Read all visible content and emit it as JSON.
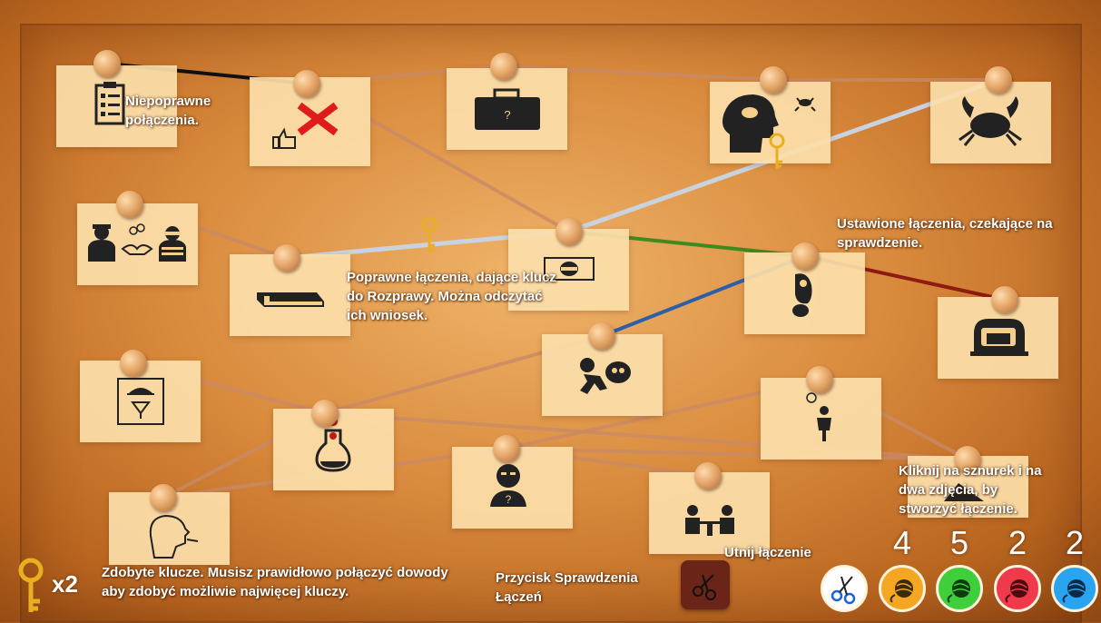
{
  "notes": {
    "wrong": "Niepoprawne połączenia.",
    "correct": "Poprawne łączenia, dające klucz do Rozprawy. Można odczytać ich wniosek.",
    "pending": "Ustawione łączenia, czekające na sprawdzenie.",
    "click": "Kliknij na sznurek i na dwa zdjęcia, by stworzyć łączenie.",
    "keys": "Zdobyte klucze. Musisz prawidłowo połączyć dowody aby zdobyć możliwie najwięcej kluczy.",
    "check_button": "Przycisk Sprawdzenia Łączeń",
    "cut": "Utnij łączenie"
  },
  "keys": {
    "count": "x2",
    "color": "#e8b020"
  },
  "cards": [
    {
      "id": "checklist",
      "icon": "checklist-icon"
    },
    {
      "id": "thumbs-wrong",
      "icon": "thumbs-up-icon"
    },
    {
      "id": "briefcase",
      "icon": "briefcase-icon"
    },
    {
      "id": "head-crab",
      "icon": "head-crab-icon"
    },
    {
      "id": "crab",
      "icon": "crab-icon"
    },
    {
      "id": "deal",
      "icon": "handshake-icon"
    },
    {
      "id": "book",
      "icon": "book-icon"
    },
    {
      "id": "thief-face",
      "icon": "masked-face-icon"
    },
    {
      "id": "footprint",
      "icon": "footprint-icon"
    },
    {
      "id": "safe",
      "icon": "safe-icon"
    },
    {
      "id": "menu",
      "icon": "menu-icon"
    },
    {
      "id": "poison",
      "icon": "poison-flask-icon"
    },
    {
      "id": "thief-run",
      "icon": "running-thief-icon"
    },
    {
      "id": "person",
      "icon": "child-icon"
    },
    {
      "id": "suspect",
      "icon": "suspect-icon"
    },
    {
      "id": "dining",
      "icon": "dining-icon"
    },
    {
      "id": "hidden",
      "icon": "hidden-icon"
    },
    {
      "id": "smoker",
      "icon": "smoker-head-icon"
    }
  ],
  "strings": {
    "default": "#c98a66",
    "wrong": "#111111",
    "correct": "#c9d3e0",
    "green": "#3f8a1e",
    "red": "#8e1a10",
    "blue": "#2d5fa8"
  },
  "tools": [
    {
      "name": "scissors",
      "count": "",
      "color": "#ffffff"
    },
    {
      "name": "orange-yarn",
      "count": "4",
      "color": "#f5a623"
    },
    {
      "name": "green-yarn",
      "count": "5",
      "color": "#3fcf3a"
    },
    {
      "name": "red-yarn",
      "count": "2",
      "color": "#f0394a"
    },
    {
      "name": "blue-yarn",
      "count": "2",
      "color": "#29a4f0"
    }
  ]
}
